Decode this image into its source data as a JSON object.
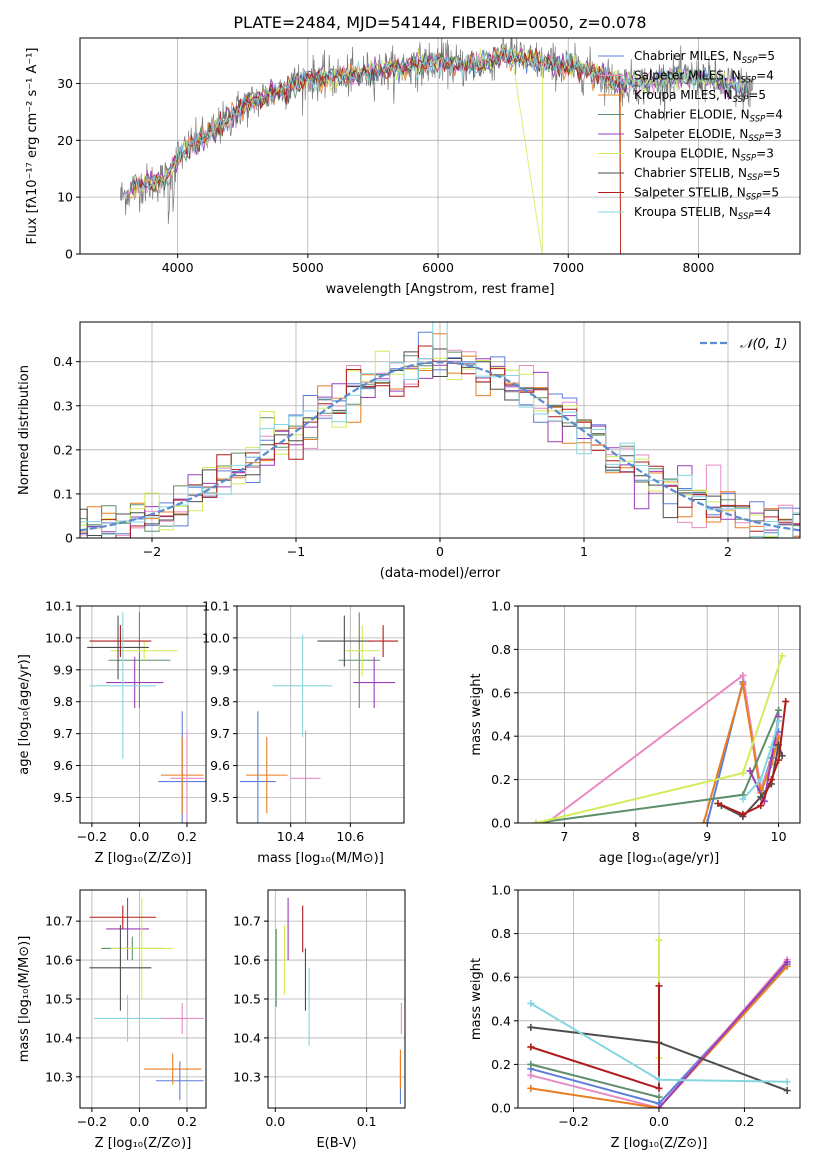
{
  "page_title": "PLATE=2484, MJD=54144, FIBERID=0050, z=0.078",
  "models": [
    {
      "name": "Chabrier MILES",
      "nssp": "5",
      "color": "#5b7fd8"
    },
    {
      "name": "Salpeter MILES",
      "nssp": "4",
      "color": "#e78bc3"
    },
    {
      "name": "Kroupa MILES",
      "nssp": "5",
      "color": "#e87d22"
    },
    {
      "name": "Chabrier ELODIE",
      "nssp": "4",
      "color": "#5f8f68"
    },
    {
      "name": "Salpeter ELODIE",
      "nssp": "3",
      "color": "#9b3db8"
    },
    {
      "name": "Kroupa ELODIE",
      "nssp": "3",
      "color": "#d4ec5c"
    },
    {
      "name": "Chabrier STELIB",
      "nssp": "5",
      "color": "#4d4d4d"
    },
    {
      "name": "Salpeter STELIB",
      "nssp": "5",
      "color": "#b01c1c"
    },
    {
      "name": "Kroupa STELIB",
      "nssp": "4",
      "color": "#86d6e0"
    }
  ],
  "chart_data": [
    {
      "id": "spectrum",
      "type": "line",
      "xlabel": "wavelength [Angstrom, rest frame]",
      "ylabel": "Flux [fλ10⁻¹⁷ erg cm⁻² s⁻¹ A⁻¹]",
      "xlim": [
        3250,
        8780
      ],
      "ylim": [
        0,
        38
      ],
      "xticks": [
        4000,
        5000,
        6000,
        7000,
        8000
      ],
      "yticks": [
        0,
        10,
        20,
        30
      ],
      "data_color": "#7a7a7a",
      "continuum_x": [
        3560,
        3700,
        3900,
        4000,
        4100,
        4300,
        4500,
        4800,
        5000,
        5200,
        5500,
        5800,
        6000,
        6200,
        6400,
        6500,
        6700,
        7000,
        7200,
        7400,
        7600,
        7800,
        8000,
        8200,
        8400
      ],
      "continuum_y": [
        10,
        12,
        13,
        17,
        19,
        22,
        26,
        29,
        31,
        31,
        32,
        33,
        34,
        33,
        34,
        35,
        34,
        33,
        32,
        30,
        30,
        31,
        31,
        30,
        29
      ],
      "legend_location": "upper right"
    },
    {
      "id": "residuals",
      "type": "histogram",
      "xlabel": "(data-model)/error",
      "ylabel": "Normed distribution",
      "xlim": [
        -2.5,
        2.5
      ],
      "ylim": [
        0,
        0.49
      ],
      "xticks": [
        -2,
        -1,
        0,
        1,
        2
      ],
      "yticks": [
        0.0,
        0.1,
        0.2,
        0.3,
        0.4
      ],
      "bin_width": 0.1,
      "reference_curve": {
        "label": "𝒩(0, 1)",
        "color": "#5b8bd0"
      },
      "legend_location": "upper right"
    },
    {
      "id": "age-vs-z",
      "type": "errorbar",
      "xlabel": "Z [log₁₀(Z/Z⊙)]",
      "ylabel": "age  [log₁₀(age/yr)]",
      "xlim": [
        -0.25,
        0.28
      ],
      "ylim": [
        9.42,
        10.1
      ],
      "xticks": [
        -0.2,
        0.0,
        0.2
      ],
      "yticks": [
        9.5,
        9.6,
        9.7,
        9.8,
        9.9,
        10.0,
        10.1
      ],
      "points": [
        {
          "x": 0.18,
          "y": 9.55,
          "xerr": 0.1,
          "yerr": 0.22
        },
        {
          "x": 0.2,
          "y": 9.56,
          "xerr": 0.07,
          "yerr": 0.15
        },
        {
          "x": 0.18,
          "y": 9.57,
          "xerr": 0.09,
          "yerr": 0.12
        },
        {
          "x": 0.0,
          "y": 9.93,
          "xerr": 0.13,
          "yerr": 0.15
        },
        {
          "x": -0.02,
          "y": 9.86,
          "xerr": 0.12,
          "yerr": 0.08
        },
        {
          "x": 0.02,
          "y": 9.96,
          "xerr": 0.14,
          "yerr": 0.03
        },
        {
          "x": -0.09,
          "y": 9.97,
          "xerr": 0.13,
          "yerr": 0.1
        },
        {
          "x": -0.08,
          "y": 9.99,
          "xerr": 0.13,
          "yerr": 0.05
        },
        {
          "x": -0.07,
          "y": 9.85,
          "xerr": 0.14,
          "yerr": 0.23
        }
      ]
    },
    {
      "id": "age-vs-mass",
      "type": "errorbar",
      "xlabel": "mass [log₁₀(M/M⊙)]",
      "ylabel": "",
      "xlim": [
        10.22,
        10.78
      ],
      "ylim": [
        9.42,
        10.1
      ],
      "xticks": [
        10.4,
        10.6
      ],
      "yticks": [
        9.5,
        9.6,
        9.7,
        9.8,
        9.9,
        10.0,
        10.1
      ],
      "points": [
        {
          "x": 10.29,
          "y": 9.55,
          "xerr": 0.06,
          "yerr": 0.22
        },
        {
          "x": 10.45,
          "y": 9.56,
          "xerr": 0.05,
          "yerr": 0.15
        },
        {
          "x": 10.32,
          "y": 9.57,
          "xerr": 0.07,
          "yerr": 0.12
        },
        {
          "x": 10.63,
          "y": 9.93,
          "xerr": 0.07,
          "yerr": 0.15
        },
        {
          "x": 10.68,
          "y": 9.86,
          "xerr": 0.07,
          "yerr": 0.08
        },
        {
          "x": 10.64,
          "y": 9.96,
          "xerr": 0.06,
          "yerr": 0.08
        },
        {
          "x": 10.58,
          "y": 9.99,
          "xerr": 0.09,
          "yerr": 0.08
        },
        {
          "x": 10.71,
          "y": 9.99,
          "xerr": 0.05,
          "yerr": 0.05
        },
        {
          "x": 10.44,
          "y": 9.85,
          "xerr": 0.1,
          "yerr": 0.16
        }
      ]
    },
    {
      "id": "mass-weight-vs-age",
      "type": "line",
      "xlabel": "age  [log₁₀(age/yr)]",
      "ylabel": "mass weight",
      "xlim": [
        6.35,
        10.3
      ],
      "ylim": [
        0,
        1
      ],
      "xticks": [
        7,
        8,
        9,
        10
      ],
      "yticks": [
        0.0,
        0.2,
        0.4,
        0.6,
        0.8,
        1.0
      ],
      "series": [
        {
          "x": [
            9.0,
            9.5,
            9.75,
            9.9,
            10.0
          ],
          "y": [
            0.0,
            0.65,
            0.15,
            0.3,
            0.42
          ]
        },
        {
          "x": [
            6.75,
            9.5,
            9.75,
            9.9,
            10.0
          ],
          "y": [
            0.0,
            0.68,
            0.16,
            0.28,
            0.4
          ]
        },
        {
          "x": [
            8.95,
            9.5,
            9.75,
            9.9,
            10.0
          ],
          "y": [
            0.0,
            0.64,
            0.14,
            0.27,
            0.39
          ]
        },
        {
          "x": [
            6.6,
            9.5,
            10.0
          ],
          "y": [
            0.0,
            0.13,
            0.52
          ]
        },
        {
          "x": [
            9.6,
            9.8,
            10.0
          ],
          "y": [
            0.24,
            0.1,
            0.49
          ]
        },
        {
          "x": [
            6.6,
            9.5,
            10.05
          ],
          "y": [
            0.0,
            0.23,
            0.77
          ]
        },
        {
          "x": [
            9.2,
            9.5,
            9.75,
            9.9,
            10.0,
            10.05
          ],
          "y": [
            0.08,
            0.03,
            0.12,
            0.18,
            0.36,
            0.31
          ]
        },
        {
          "x": [
            9.15,
            9.5,
            9.75,
            9.9,
            10.0,
            10.1
          ],
          "y": [
            0.09,
            0.04,
            0.08,
            0.2,
            0.29,
            0.56
          ]
        },
        {
          "x": [
            9.5,
            9.75,
            9.9,
            10.0
          ],
          "y": [
            0.11,
            0.2,
            0.35,
            0.47
          ]
        }
      ]
    },
    {
      "id": "mass-vs-z",
      "type": "errorbar",
      "xlabel": "Z [log₁₀(Z/Z⊙)]",
      "ylabel": "mass [log₁₀(M/M⊙)]",
      "xlim": [
        -0.25,
        0.28
      ],
      "ylim": [
        10.22,
        10.78
      ],
      "xticks": [
        -0.2,
        0.0,
        0.2
      ],
      "yticks": [
        10.3,
        10.4,
        10.5,
        10.6,
        10.7
      ],
      "points": [
        {
          "x": 0.17,
          "y": 10.29,
          "xerr": 0.1,
          "yerr": 0.05
        },
        {
          "x": 0.18,
          "y": 10.45,
          "xerr": 0.09,
          "yerr": 0.04
        },
        {
          "x": 0.14,
          "y": 10.32,
          "xerr": 0.12,
          "yerr": 0.04
        },
        {
          "x": -0.03,
          "y": 10.63,
          "xerr": 0.13,
          "yerr": 0.03
        },
        {
          "x": -0.05,
          "y": 10.68,
          "xerr": 0.09,
          "yerr": 0.08
        },
        {
          "x": 0.01,
          "y": 10.63,
          "xerr": 0.13,
          "yerr": 0.13
        },
        {
          "x": -0.08,
          "y": 10.58,
          "xerr": 0.13,
          "yerr": 0.11
        },
        {
          "x": -0.07,
          "y": 10.71,
          "xerr": 0.14,
          "yerr": 0.03
        },
        {
          "x": -0.05,
          "y": 10.45,
          "xerr": 0.14,
          "yerr": 0.06
        }
      ]
    },
    {
      "id": "mass-vs-ebv",
      "type": "errorbar",
      "xlabel": "E(B-V)",
      "ylabel": "",
      "xlim": [
        -0.008,
        0.142
      ],
      "ylim": [
        10.22,
        10.78
      ],
      "xticks": [
        0.0,
        0.1
      ],
      "yticks": [
        10.3,
        10.4,
        10.5,
        10.6,
        10.7
      ],
      "points": [
        {
          "x": 0.137,
          "y": 10.29,
          "xerr": 0,
          "yerr": 0.06
        },
        {
          "x": 0.138,
          "y": 10.45,
          "xerr": 0,
          "yerr": 0.04
        },
        {
          "x": 0.137,
          "y": 10.32,
          "xerr": 0,
          "yerr": 0.05
        },
        {
          "x": 0.001,
          "y": 10.58,
          "xerr": 0,
          "yerr": 0.1
        },
        {
          "x": 0.014,
          "y": 10.68,
          "xerr": 0,
          "yerr": 0.08
        },
        {
          "x": 0.01,
          "y": 10.6,
          "xerr": 0,
          "yerr": 0.09
        },
        {
          "x": 0.033,
          "y": 10.55,
          "xerr": 0,
          "yerr": 0.08
        },
        {
          "x": 0.03,
          "y": 10.68,
          "xerr": 0,
          "yerr": 0.06
        },
        {
          "x": 0.037,
          "y": 10.48,
          "xerr": 0,
          "yerr": 0.1
        }
      ]
    },
    {
      "id": "mass-weight-vs-z",
      "type": "line",
      "xlabel": "Z [log₁₀(Z/Z⊙)]",
      "ylabel": "mass weight",
      "xlim": [
        -0.33,
        0.33
      ],
      "ylim": [
        0,
        1
      ],
      "xticks": [
        -0.2,
        0.0,
        0.2
      ],
      "yticks": [
        0.0,
        0.2,
        0.4,
        0.6,
        0.8,
        1.0
      ],
      "series": [
        {
          "x": [
            -0.3,
            0.0,
            0.3
          ],
          "y": [
            0.18,
            0.02,
            0.66
          ]
        },
        {
          "x": [
            -0.3,
            0.0,
            0.3
          ],
          "y": [
            0.15,
            0.0,
            0.68
          ]
        },
        {
          "x": [
            -0.3,
            0.0,
            0.3
          ],
          "y": [
            0.09,
            0.0,
            0.65
          ]
        },
        {
          "x": [
            -0.3,
            0.0
          ],
          "y": [
            0.2,
            0.05
          ]
        },
        {
          "x": [
            0.0,
            0.3
          ],
          "y": [
            0.0,
            0.67
          ]
        },
        {
          "x": [
            0.0,
            0.0
          ],
          "y": [
            0.77,
            0.23
          ]
        },
        {
          "x": [
            -0.3,
            0.0,
            0.3
          ],
          "y": [
            0.37,
            0.3,
            0.08
          ]
        },
        {
          "x": [
            -0.3,
            0.0,
            0.0
          ],
          "y": [
            0.28,
            0.09,
            0.56
          ]
        },
        {
          "x": [
            -0.3,
            0.0,
            0.3
          ],
          "y": [
            0.48,
            0.13,
            0.12
          ]
        }
      ]
    }
  ]
}
